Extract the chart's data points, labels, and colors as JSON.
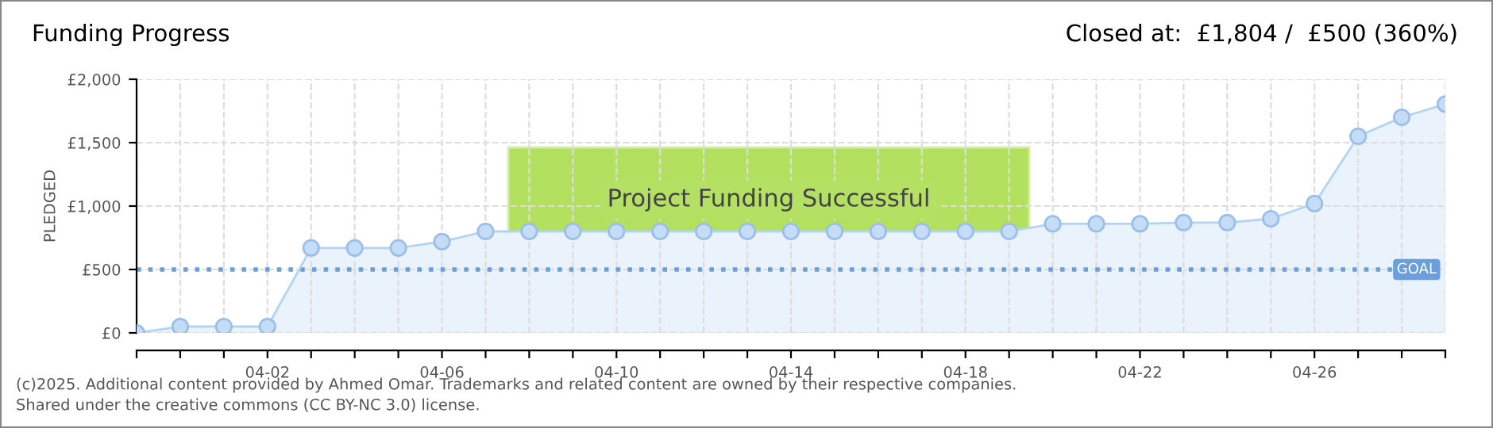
{
  "chart_data": {
    "type": "area",
    "title": "Funding Progress",
    "subtitle": "Closed at:  £1,804 /  £500 (360%)",
    "ylabel": "PLEDGED",
    "categories": [
      null,
      null,
      null,
      "04-02",
      null,
      null,
      null,
      "04-06",
      null,
      null,
      null,
      "04-10",
      null,
      null,
      null,
      "04-14",
      null,
      null,
      null,
      "04-18",
      null,
      null,
      null,
      "04-22",
      null,
      null,
      null,
      "04-26",
      null,
      null,
      null
    ],
    "series": [
      {
        "color": "#b3d3f5",
        "values": [
          0,
          50,
          50,
          50,
          670,
          670,
          670,
          720,
          800,
          800,
          800,
          800,
          800,
          800,
          800,
          800,
          800,
          800,
          800,
          800,
          800,
          860,
          860,
          860,
          870,
          870,
          900,
          1020,
          1550,
          1700,
          1804
        ]
      }
    ],
    "ylim": [
      0,
      2000
    ],
    "yticks": [
      {
        "value": 0,
        "label": "£0"
      },
      {
        "value": 500,
        "label": "£500"
      },
      {
        "value": 1000,
        "label": "£1,000"
      },
      {
        "value": 1500,
        "label": "£1,500"
      },
      {
        "value": 2000,
        "label": "£2,000"
      }
    ],
    "grid": true,
    "marker": "circle",
    "line_style": "solid",
    "ref_lines": [
      {
        "axis": "y",
        "value": 500,
        "label": "GOAL",
        "color": "#6a9fdc",
        "line_style": "dotted"
      }
    ],
    "annotations": [
      "Project Funding Successful",
      "(c)2025. Additional content provided by Ahmed Omar. Trademarks and related content are owned by their respective companies.",
      "Shared under the creative commons (CC BY-NC 3.0) license."
    ]
  }
}
